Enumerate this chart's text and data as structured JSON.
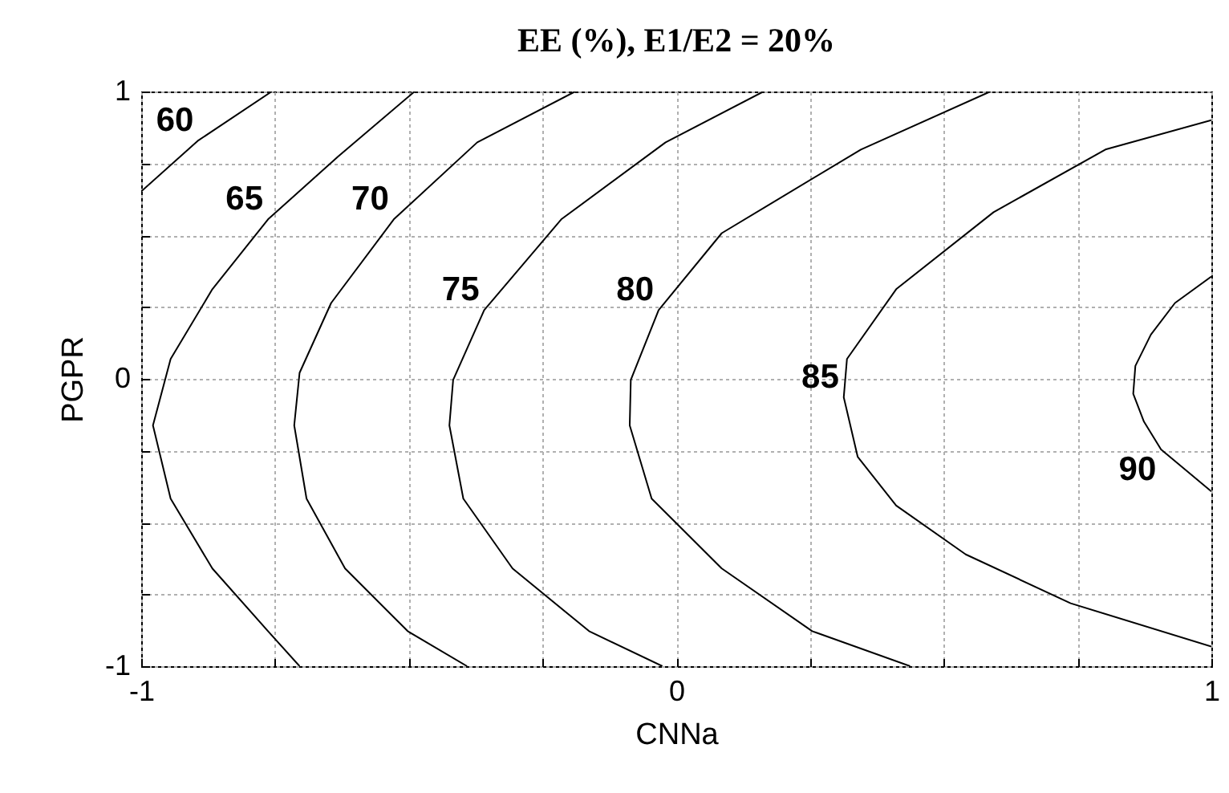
{
  "chart_data": {
    "type": "line",
    "title": "EE (%), E1/E2 = 20%",
    "xlabel": "CNNa",
    "ylabel": "PGPR",
    "xlim": [
      -1,
      1
    ],
    "ylim": [
      -1,
      1
    ],
    "xticks": [
      -1,
      {
        "value": -0.75,
        "label": null
      },
      {
        "value": -0.5,
        "label": null
      },
      {
        "value": -0.25,
        "label": null
      },
      0,
      {
        "value": 0.25,
        "label": null
      },
      {
        "value": 0.5,
        "label": null
      },
      {
        "value": 0.75,
        "label": null
      },
      1
    ],
    "yticks": [
      -1,
      {
        "value": -0.75,
        "label": null
      },
      {
        "value": -0.5,
        "label": null
      },
      {
        "value": -0.25,
        "label": null
      },
      0,
      {
        "value": 0.25,
        "label": null
      },
      {
        "value": 0.5,
        "label": null
      },
      {
        "value": 0.75,
        "label": null
      },
      1
    ],
    "grid": true,
    "legend": false,
    "series": [
      {
        "name": "60",
        "color": "#000000",
        "x": [
          -0.756,
          -0.893,
          -1
        ],
        "values": [
          1,
          0.83,
          0.652
        ]
      },
      {
        "name": "65",
        "color": "#000000",
        "x": [
          -0.489,
          -0.632,
          -0.763,
          -0.867,
          -0.945,
          -0.978,
          -0.945,
          -0.867,
          -0.763,
          -0.704
        ],
        "values": [
          1,
          0.774,
          0.555,
          0.312,
          0.069,
          -0.162,
          -0.417,
          -0.66,
          -0.878,
          -1
        ]
      },
      {
        "name": "70",
        "color": "#000000",
        "x": [
          -0.189,
          -0.372,
          -0.528,
          -0.645,
          -0.704,
          -0.714,
          -0.691,
          -0.619,
          -0.502,
          -0.391
        ],
        "values": [
          1,
          0.823,
          0.555,
          0.264,
          0.021,
          -0.162,
          -0.417,
          -0.66,
          -0.878,
          -1
        ]
      },
      {
        "name": "75",
        "color": "#000000",
        "x": [
          0.163,
          -0.02,
          -0.215,
          -0.359,
          -0.417,
          -0.424,
          -0.398,
          -0.306,
          -0.163,
          -0.026
        ],
        "values": [
          1,
          0.823,
          0.555,
          0.239,
          -0.004,
          -0.162,
          -0.417,
          -0.66,
          -0.878,
          -1
        ]
      },
      {
        "name": "80",
        "color": "#000000",
        "x": [
          0.587,
          0.345,
          0.085,
          -0.033,
          -0.085,
          -0.087,
          -0.046,
          0.085,
          0.254,
          0.437
        ],
        "values": [
          1,
          0.798,
          0.507,
          0.239,
          -0.004,
          -0.162,
          -0.417,
          -0.66,
          -0.878,
          -1
        ]
      },
      {
        "name": "85",
        "color": "#000000",
        "x": [
          1,
          0.802,
          0.593,
          0.411,
          0.319,
          0.313,
          0.339,
          0.411,
          0.541,
          0.737,
          1
        ],
        "values": [
          0.9,
          0.798,
          0.58,
          0.312,
          0.069,
          -0.064,
          -0.271,
          -0.441,
          -0.611,
          -0.781,
          -0.932
        ]
      },
      {
        "name": "90",
        "color": "#000000",
        "x": [
          1,
          0.932,
          0.887,
          0.858,
          0.854,
          0.874,
          0.906,
          1
        ],
        "values": [
          0.356,
          0.264,
          0.154,
          0.045,
          -0.052,
          -0.149,
          -0.246,
          -0.392
        ]
      }
    ]
  }
}
